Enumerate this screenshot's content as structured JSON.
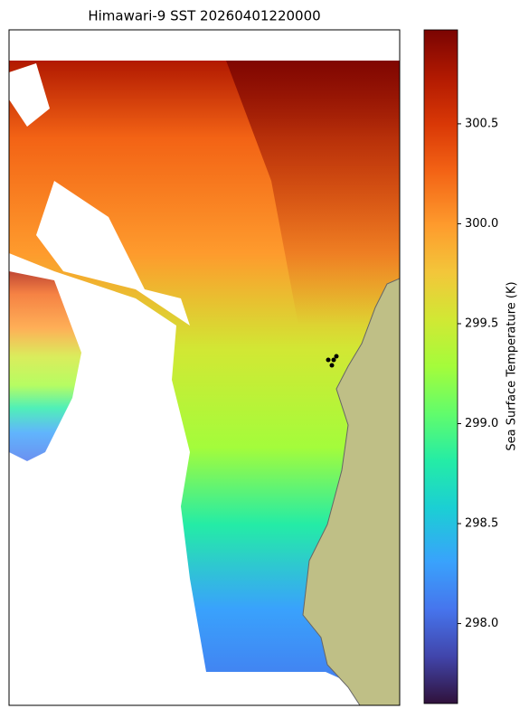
{
  "title": "Himawari-9 SST 20260401220000",
  "colorbar": {
    "label": "Sea Surface Temperature (K)",
    "range": [
      297.6,
      300.97
    ],
    "ticks": [
      {
        "value": 298,
        "label": "298.0"
      },
      {
        "value": 298.5,
        "label": "298.5"
      },
      {
        "value": 299,
        "label": "299.0"
      },
      {
        "value": 299.5,
        "label": "299.5"
      },
      {
        "value": 300,
        "label": "300.0"
      },
      {
        "value": 300.5,
        "label": "300.5"
      }
    ]
  }
}
